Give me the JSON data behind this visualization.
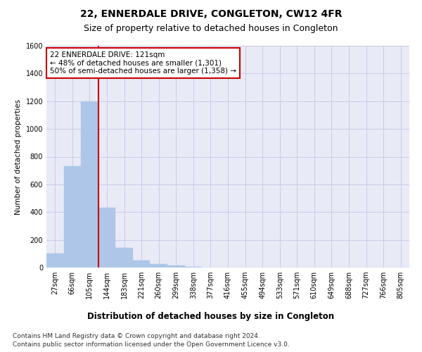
{
  "title": "22, ENNERDALE DRIVE, CONGLETON, CW12 4FR",
  "subtitle": "Size of property relative to detached houses in Congleton",
  "xlabel": "Distribution of detached houses by size in Congleton",
  "ylabel": "Number of detached properties",
  "footer_line1": "Contains HM Land Registry data © Crown copyright and database right 2024.",
  "footer_line2": "Contains public sector information licensed under the Open Government Licence v3.0.",
  "bar_labels": [
    "27sqm",
    "66sqm",
    "105sqm",
    "144sqm",
    "183sqm",
    "221sqm",
    "260sqm",
    "299sqm",
    "338sqm",
    "377sqm",
    "416sqm",
    "455sqm",
    "494sqm",
    "533sqm",
    "571sqm",
    "610sqm",
    "649sqm",
    "688sqm",
    "727sqm",
    "766sqm",
    "805sqm"
  ],
  "bar_values": [
    100,
    730,
    1200,
    430,
    140,
    50,
    25,
    15,
    5,
    2,
    1,
    1,
    0,
    0,
    0,
    0,
    0,
    0,
    0,
    0,
    0
  ],
  "bar_color": "#aec6e8",
  "bar_edge_color": "#aec6e8",
  "grid_color": "#c8cce8",
  "background_color": "#e8eaf6",
  "annotation_line1": "22 ENNERDALE DRIVE: 121sqm",
  "annotation_line2": "← 48% of detached houses are smaller (1,301)",
  "annotation_line3": "50% of semi-detached houses are larger (1,358) →",
  "vline_x": 2.5,
  "vline_color": "#cc0000",
  "annotation_border_color": "#cc0000",
  "ylim": [
    0,
    1600
  ],
  "yticks": [
    0,
    200,
    400,
    600,
    800,
    1000,
    1200,
    1400,
    1600
  ],
  "title_fontsize": 10,
  "subtitle_fontsize": 9,
  "xlabel_fontsize": 8.5,
  "ylabel_fontsize": 7.5,
  "tick_fontsize": 7,
  "footer_fontsize": 6.5,
  "annotation_fontsize": 7.5
}
